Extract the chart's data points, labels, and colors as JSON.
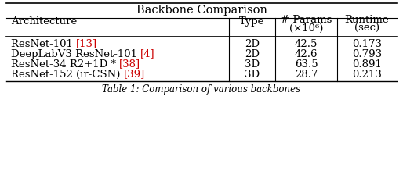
{
  "title": "Backbone Comparison",
  "caption": "Table 1: Comparison of various backbones",
  "col_headers_line1": [
    "Architecture",
    "Type",
    "# Params",
    "Runtime"
  ],
  "col_headers_line2": [
    "",
    "",
    "(×10⁶)",
    "(sec)"
  ],
  "rows": [
    [
      "ResNet-101 ",
      "[13]",
      "2D",
      "42.5",
      "0.173"
    ],
    [
      "DeepLabV3 ResNet-101 ",
      "[4]",
      "2D",
      "42.6",
      "0.793"
    ],
    [
      "ResNet-34 R2+1D * ",
      "[38]",
      "3D",
      "63.5",
      "0.891"
    ],
    [
      "ResNet-152 (ir-CSN) ",
      "[39]",
      "3D",
      "28.7",
      "0.213"
    ]
  ],
  "ref_color": "#cc0000",
  "bg_color": "#ffffff",
  "text_color": "#000000"
}
